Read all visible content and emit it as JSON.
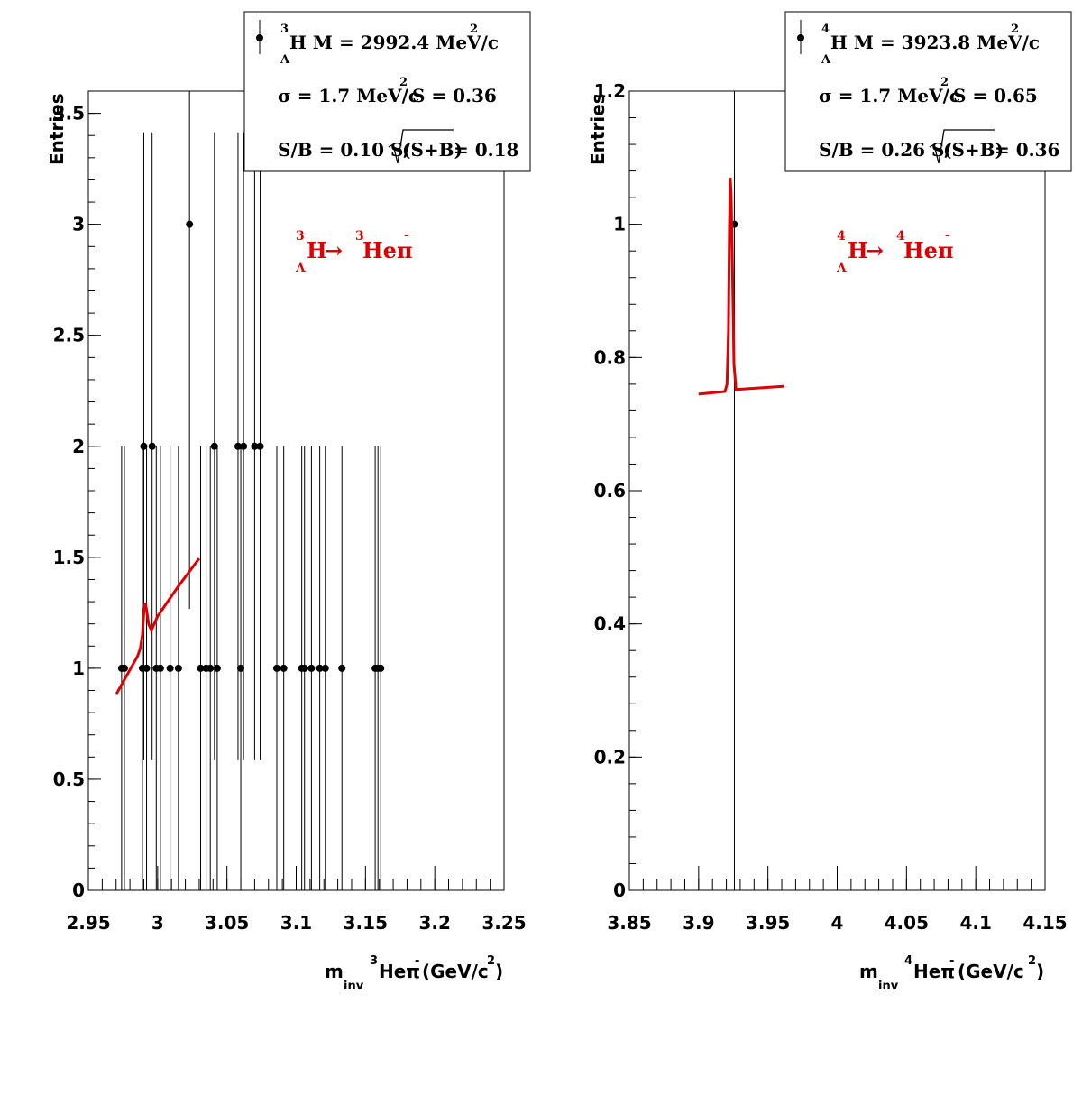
{
  "chart_data": [
    {
      "type": "scatter",
      "ylabel": "Entries",
      "xaxis": {
        "prefix": "m",
        "prefix_sub": "inv",
        "isotope": "3",
        "particle": "Heπ",
        "charge": "-",
        "units_pre": "(GeV/c",
        "units_exp": "2",
        "units_post": ")"
      },
      "xlim": [
        2.95,
        3.25
      ],
      "ylim": [
        0,
        3.6
      ],
      "xticks": [
        "2.95",
        "3",
        "3.05",
        "3.1",
        "3.15",
        "3.2",
        "3.25"
      ],
      "yticks": [
        "0",
        "0.5",
        "1",
        "1.5",
        "2",
        "2.5",
        "3",
        "3.5"
      ],
      "stats": {
        "line1": {
          "iso": "3",
          "sub": "Λ",
          "text": "H M = 2992.4 MeV/c",
          "exp": "2"
        },
        "line2": {
          "text": "σ = 1.7 MeV/c",
          "exp": "2",
          "text2": "S = 0.36"
        },
        "line3": {
          "text": "S/B = 0.10  S/",
          "sqrt": "(S+B)",
          "text2": " = 0.18"
        }
      },
      "decay": {
        "iso1": "3",
        "sub": "Λ",
        "nucleus1": "H",
        "arrow": "→",
        "iso2": "3",
        "product": "Heπ",
        "charge": "-"
      },
      "points": [
        {
          "x": 2.974,
          "y": 1
        },
        {
          "x": 2.976,
          "y": 1
        },
        {
          "x": 2.989,
          "y": 1
        },
        {
          "x": 2.99,
          "y": 2
        },
        {
          "x": 2.992,
          "y": 1
        },
        {
          "x": 2.996,
          "y": 2
        },
        {
          "x": 2.999,
          "y": 1
        },
        {
          "x": 3.002,
          "y": 1
        },
        {
          "x": 3.009,
          "y": 1
        },
        {
          "x": 3.015,
          "y": 1
        },
        {
          "x": 3.023,
          "y": 3
        },
        {
          "x": 3.031,
          "y": 1
        },
        {
          "x": 3.035,
          "y": 1
        },
        {
          "x": 3.038,
          "y": 1
        },
        {
          "x": 3.041,
          "y": 2
        },
        {
          "x": 3.043,
          "y": 1
        },
        {
          "x": 3.058,
          "y": 2
        },
        {
          "x": 3.06,
          "y": 1
        },
        {
          "x": 3.062,
          "y": 2
        },
        {
          "x": 3.07,
          "y": 2
        },
        {
          "x": 3.074,
          "y": 2
        },
        {
          "x": 3.086,
          "y": 1
        },
        {
          "x": 3.091,
          "y": 1
        },
        {
          "x": 3.104,
          "y": 1
        },
        {
          "x": 3.106,
          "y": 1
        },
        {
          "x": 3.111,
          "y": 1
        },
        {
          "x": 3.117,
          "y": 1
        },
        {
          "x": 3.121,
          "y": 1
        },
        {
          "x": 3.133,
          "y": 1
        },
        {
          "x": 3.157,
          "y": 1
        },
        {
          "x": 3.159,
          "y": 1
        },
        {
          "x": 3.161,
          "y": 1
        }
      ],
      "fit": {
        "x": [
          2.9703,
          2.9855,
          2.9875,
          2.989,
          2.99,
          2.991,
          2.992,
          2.9935,
          2.9955,
          3.0,
          3.015,
          3.03
        ],
        "y": [
          0.885,
          1.055,
          1.09,
          1.15,
          1.25,
          1.295,
          1.265,
          1.2,
          1.17,
          1.235,
          1.37,
          1.495
        ]
      }
    },
    {
      "type": "scatter",
      "ylabel": "Entries",
      "xaxis": {
        "prefix": "m",
        "prefix_sub": "inv",
        "isotope": "4",
        "particle": "Heπ",
        "charge": "-",
        "units_pre": " (GeV/c",
        "units_exp": "2",
        "units_post": ")"
      },
      "xlim": [
        3.85,
        4.15
      ],
      "ylim": [
        0,
        1.2
      ],
      "xticks": [
        "3.85",
        "3.9",
        "3.95",
        "4",
        "4.05",
        "4.1",
        "4.15"
      ],
      "yticks": [
        "0",
        "0.2",
        "0.4",
        "0.6",
        "0.8",
        "1",
        "1.2"
      ],
      "stats": {
        "line1": {
          "iso": "4",
          "sub": "Λ",
          "text": "H M = 3923.8 MeV/c",
          "exp": "2"
        },
        "line2": {
          "text": "σ = 1.7 MeV/c",
          "exp": "2",
          "text2": "S = 0.65"
        },
        "line3": {
          "text": "S/B = 0.26  S/",
          "sqrt": "(S+B)",
          "text2": " = 0.36"
        }
      },
      "decay": {
        "iso1": "4",
        "sub": "Λ",
        "nucleus1": "H",
        "arrow": "→",
        "iso2": "4",
        "product": "Heπ",
        "charge": "-"
      },
      "points": [
        {
          "x": 3.9258,
          "y": 1
        }
      ],
      "fit": {
        "x": [
          3.9,
          3.919,
          3.9205,
          3.9215,
          3.9222,
          3.9228,
          3.9235,
          3.9245,
          3.9255,
          3.927,
          3.962
        ],
        "y": [
          0.745,
          0.749,
          0.76,
          0.84,
          0.99,
          1.07,
          1.045,
          0.92,
          0.79,
          0.752,
          0.757
        ]
      }
    }
  ]
}
